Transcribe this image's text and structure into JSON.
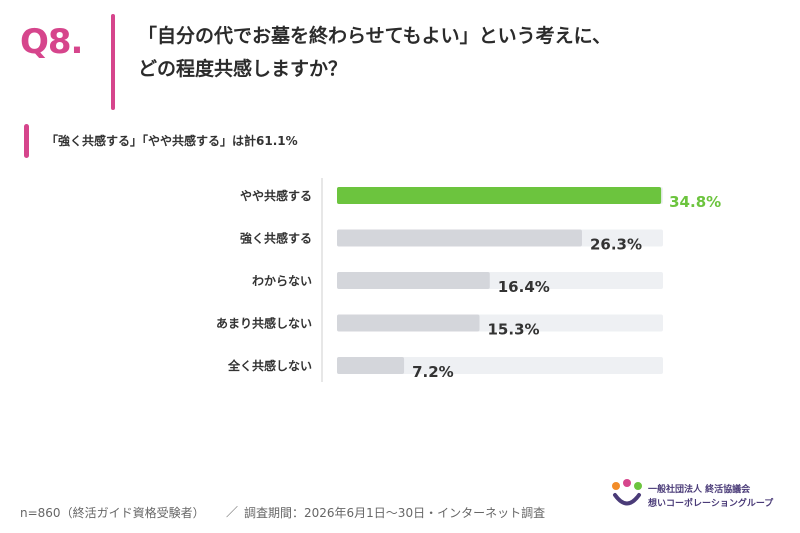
{
  "question": {
    "number": "Q8.",
    "line1": "「自分の代でお墓を終わらせてもよい」という考えに、",
    "line2": "どの程度共感しますか？"
  },
  "summary": "「強く共感する」「やや共感する」は計61.1%",
  "chart_data": {
    "type": "bar",
    "orientation": "horizontal",
    "categories": [
      "やや共感する",
      "強く共感する",
      "わからない",
      "あまり共感しない",
      "全く共感しない"
    ],
    "values": [
      34.8,
      26.3,
      16.4,
      15.3,
      7.2
    ],
    "value_labels": [
      "34.8%",
      "26.3%",
      "16.4%",
      "15.3%",
      "7.2%"
    ],
    "xlim": [
      0,
      35
    ],
    "highlight_index": 0,
    "colors": {
      "highlight": "#6cc43e",
      "bar": "#d4d6db",
      "track": "#eef0f3",
      "accent": "#d6458c"
    }
  },
  "footer": {
    "sample": "n=860（終活ガイド資格受験者）",
    "separator": "／",
    "survey": "調査期間：2026年6月1日〜30日・インターネット調査"
  },
  "logo": {
    "line1": "一般社団法人 終活協議会",
    "line2": "想いコーポレーショングループ"
  }
}
